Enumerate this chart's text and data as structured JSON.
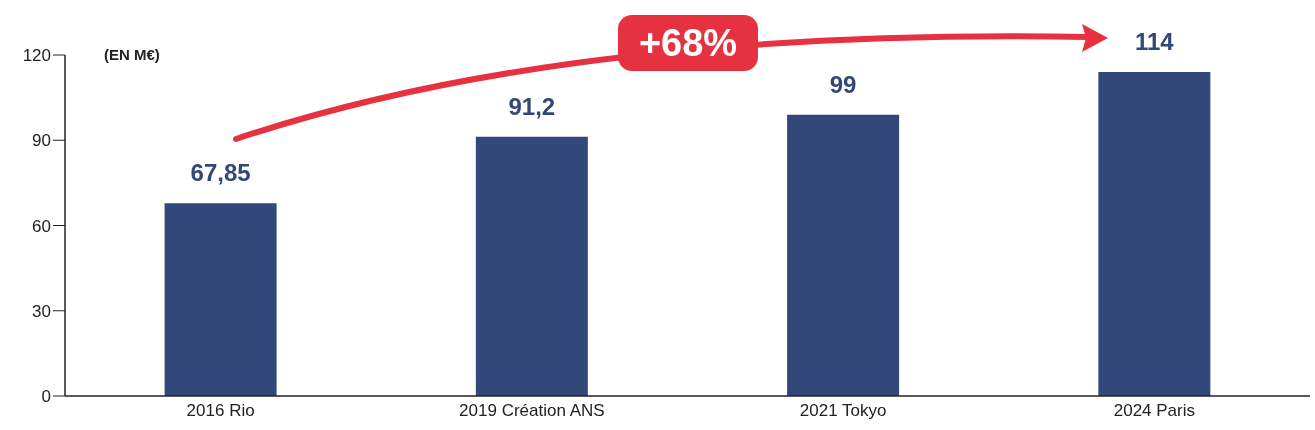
{
  "chart_data": {
    "type": "bar",
    "ylabel": "(EN M€)",
    "categories": [
      "2016 Rio",
      "2019 Création ANS",
      "2021 Tokyo",
      "2024 Paris"
    ],
    "values": [
      67.85,
      91.2,
      99,
      114
    ],
    "color": "#33487a",
    "value_labels": [
      "67,85",
      "91,2",
      "99",
      "114"
    ],
    "ylim": [
      0,
      120
    ],
    "yticks": [
      0,
      30,
      60,
      90,
      120
    ],
    "annotations": [
      "+68%"
    ]
  }
}
